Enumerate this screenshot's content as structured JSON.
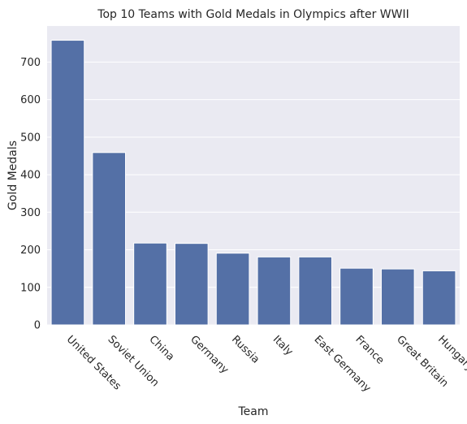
{
  "chart_data": {
    "type": "bar",
    "title": "Top 10 Teams with Gold Medals in Olympics after WWII",
    "xlabel": "Team",
    "ylabel": "Gold Medals",
    "categories": [
      "United States",
      "Soviet Union",
      "China",
      "Germany",
      "Russia",
      "Italy",
      "East Germany",
      "France",
      "Great Britain",
      "Hungary"
    ],
    "values": [
      758,
      459,
      218,
      217,
      191,
      181,
      181,
      151,
      149,
      144
    ],
    "ylim": [
      0,
      796
    ],
    "yticks": [
      0,
      100,
      200,
      300,
      400,
      500,
      600,
      700
    ],
    "grid": true,
    "colors": {
      "bar": "#5470a6",
      "plot_background": "#eaeaf2",
      "grid": "#ffffff"
    }
  }
}
